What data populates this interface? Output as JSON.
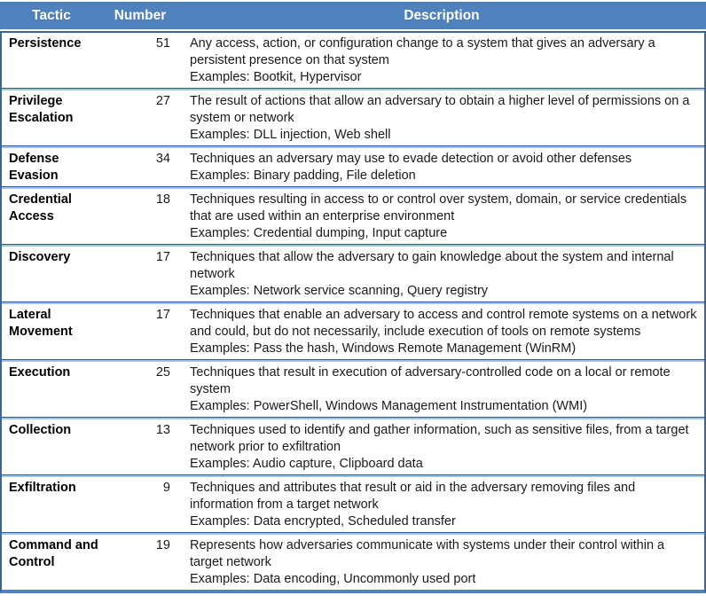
{
  "colors": {
    "header_bg": "#4F81BD",
    "header_text": "#FFFFFF",
    "row_divider_dark": "#2F5A96",
    "row_divider_light": "#9DC3E6",
    "outer_border": "#3D6498",
    "bottom_border": "#4F81BD",
    "body_text": "#1A1A1A"
  },
  "table": {
    "columns": [
      {
        "label": "Tactic"
      },
      {
        "label": "Number"
      },
      {
        "label": "Description"
      }
    ],
    "rows": [
      {
        "tactic": "Persistence",
        "number": "51",
        "description": "Any access, action, or configuration change to a system that gives an adversary a persistent presence on that system",
        "examples": "Examples: Bootkit, Hypervisor"
      },
      {
        "tactic": "Privilege Escalation",
        "number": "27",
        "description": "The result of actions that allow an adversary to obtain a higher level of permissions on a system or network",
        "examples": "Examples: DLL injection, Web shell"
      },
      {
        "tactic": "Defense Evasion",
        "number": "34",
        "description": "Techniques an adversary may use to evade detection or avoid other defenses",
        "examples": "Examples: Binary padding, File deletion"
      },
      {
        "tactic": "Credential Access",
        "number": "18",
        "description": "Techniques resulting in access to or control over system, domain, or service credentials that are used within an enterprise environment",
        "examples": "Examples: Credential dumping, Input capture"
      },
      {
        "tactic": "Discovery",
        "number": "17",
        "description": "Techniques that allow the adversary to gain knowledge about the system and internal network",
        "examples": "Examples: Network service scanning, Query registry"
      },
      {
        "tactic": "Lateral Movement",
        "number": "17",
        "description": "Techniques that enable an adversary to access and control remote systems on a network and could, but do not necessarily, include execution of tools on remote systems",
        "examples": "Examples: Pass the hash, Windows Remote Management (WinRM)"
      },
      {
        "tactic": "Execution",
        "number": "25",
        "description": "Techniques that result in execution of adversary-controlled code on a local or remote system",
        "examples": "Examples: PowerShell, Windows Management Instrumentation (WMI)"
      },
      {
        "tactic": "Collection",
        "number": "13",
        "description": "Techniques used to identify and gather information, such as sensitive files, from a target network prior to exfiltration",
        "examples": "Examples: Audio capture, Clipboard data"
      },
      {
        "tactic": "Exfiltration",
        "number": "9",
        "description": "Techniques and attributes that result or aid in the adversary removing files and information from a target network",
        "examples": "Examples: Data encrypted, Scheduled transfer"
      },
      {
        "tactic": "Command and Control",
        "number": "19",
        "description": "Represents how adversaries communicate with systems under their control within a target network",
        "examples": "Examples: Data encoding, Uncommonly used port"
      }
    ]
  }
}
